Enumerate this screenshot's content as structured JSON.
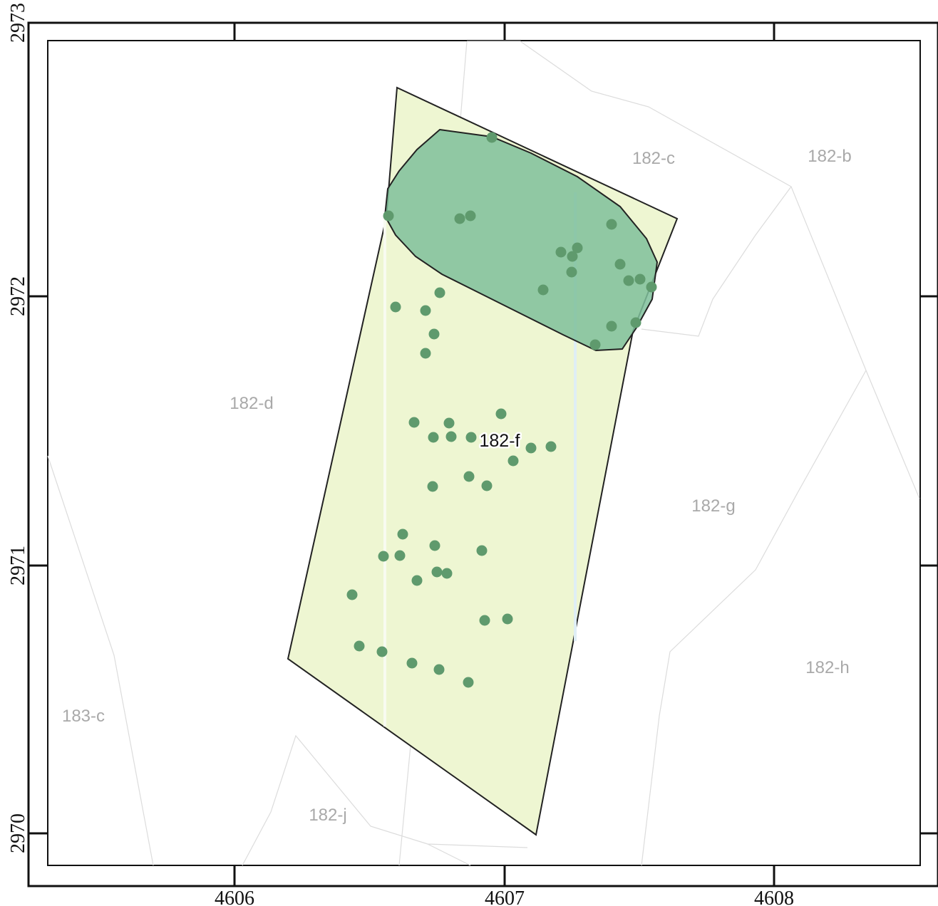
{
  "axes": {
    "x_ticks": [
      "4606",
      "4607",
      "4608"
    ],
    "y_ticks": [
      "2973",
      "2972",
      "2971",
      "2970"
    ]
  },
  "regions": {
    "labels": [
      "182-c",
      "182-b",
      "182-d",
      "182-g",
      "182-h",
      "183-c",
      "182-j"
    ],
    "focus_label": "182-f"
  },
  "colors": {
    "focus_fill": "#eef6d2",
    "cluster_fill": "#7fbf9b",
    "point_fill": "#5f9a6d",
    "boundary_line": "#dcdcdc",
    "frame": "#111111"
  },
  "points": {
    "count": 50
  }
}
